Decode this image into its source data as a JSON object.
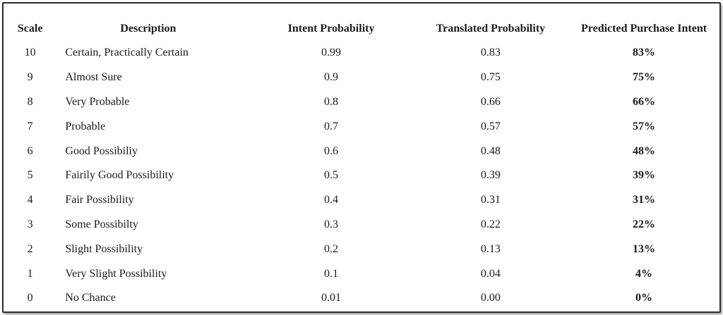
{
  "headers": {
    "scale": "Scale",
    "description": "Description",
    "intent": "Intent Probability",
    "translated": "Translated Probability",
    "predicted": "Predicted Purchase Intent"
  },
  "rows": [
    {
      "scale": "10",
      "description": "Certain, Practically Certain",
      "intent": "0.99",
      "translated": "0.83",
      "predicted": "83%"
    },
    {
      "scale": "9",
      "description": "Almost Sure",
      "intent": "0.9",
      "translated": "0.75",
      "predicted": "75%"
    },
    {
      "scale": "8",
      "description": "Very Probable",
      "intent": "0.8",
      "translated": "0.66",
      "predicted": "66%"
    },
    {
      "scale": "7",
      "description": "Probable",
      "intent": "0.7",
      "translated": "0.57",
      "predicted": "57%"
    },
    {
      "scale": "6",
      "description": "Good Possibiliy",
      "intent": "0.6",
      "translated": "0.48",
      "predicted": "48%"
    },
    {
      "scale": "5",
      "description": "Fairily Good Possibility",
      "intent": "0.5",
      "translated": "0.39",
      "predicted": "39%"
    },
    {
      "scale": "4",
      "description": "Fair Possibility",
      "intent": "0.4",
      "translated": "0.31",
      "predicted": "31%"
    },
    {
      "scale": "3",
      "description": "Some Possibilty",
      "intent": "0.3",
      "translated": "0.22",
      "predicted": "22%"
    },
    {
      "scale": "2",
      "description": "Slight Possibility",
      "intent": "0.2",
      "translated": "0.13",
      "predicted": "13%"
    },
    {
      "scale": "1",
      "description": "Very Slight Possibility",
      "intent": "0.1",
      "translated": "0.04",
      "predicted": "4%"
    },
    {
      "scale": "0",
      "description": "No Chance",
      "intent": "0.01",
      "translated": "0.00",
      "predicted": "0%"
    }
  ]
}
